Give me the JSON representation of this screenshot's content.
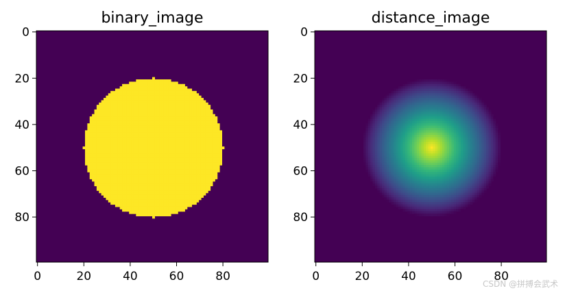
{
  "chart_data": [
    {
      "type": "heatmap",
      "title": "binary_image",
      "shape": [
        100,
        100
      ],
      "colormap": "viridis",
      "xticks": [
        0,
        20,
        40,
        60,
        80
      ],
      "yticks": [
        0,
        20,
        40,
        60,
        80
      ],
      "xlim": [
        0,
        99
      ],
      "ylim": [
        99,
        0
      ],
      "content": {
        "kind": "disk",
        "center": [
          50,
          50
        ],
        "radius": 30,
        "inside_value": 1,
        "outside_value": 0
      },
      "value_range": [
        0,
        1
      ]
    },
    {
      "type": "heatmap",
      "title": "distance_image",
      "shape": [
        100,
        100
      ],
      "colormap": "viridis",
      "xticks": [
        0,
        20,
        40,
        60,
        80
      ],
      "yticks": [
        0,
        20,
        40,
        60,
        80
      ],
      "xlim": [
        0,
        99
      ],
      "ylim": [
        99,
        0
      ],
      "content": {
        "kind": "distance_transform_of_disk",
        "center": [
          50,
          50
        ],
        "radius": 30,
        "max_value": 30,
        "outside_value": 0
      },
      "value_range": [
        0,
        30
      ]
    }
  ],
  "watermark": "CSDN @拼搏会武术"
}
